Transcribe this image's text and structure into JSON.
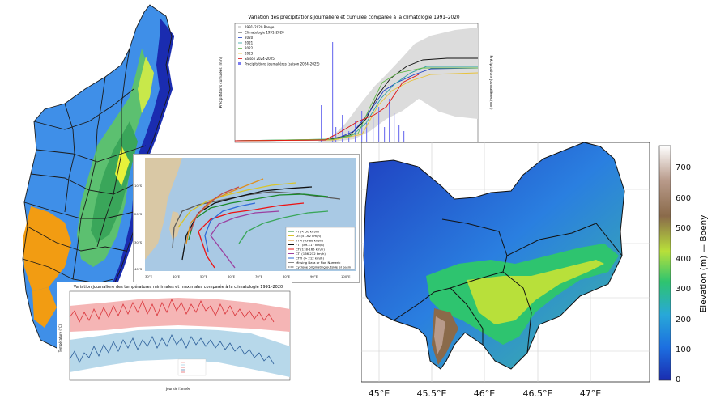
{
  "colors": {
    "precip_cumul": "#111111",
    "precip_range": "#d8d8d8",
    "precip_daily": "#7b7cf0",
    "temp_max_fill": "#f5b5b5",
    "temp_min_fill": "#b7d8ea",
    "temp_max_line": "#d9343a",
    "temp_min_line": "#2d5f9a",
    "colorbar_stops": [
      "#1a2cb0",
      "#1c6fe0",
      "#28a8d8",
      "#2ec46f",
      "#b8e03a",
      "#8a6a4a",
      "#b89a8a",
      "#ffffff"
    ]
  },
  "precip_chart": {
    "title": "Variation des précipitations journalière et cumulée comparée à la climatologie 1991–2020",
    "ylabel_left": "Précipitations cumulées (mm)",
    "ylabel_right": "Précipitations journalières (mm)",
    "legend": [
      "1991–2020 Range",
      "Climatologie 1991–2020",
      "2020",
      "2021",
      "2022",
      "2023",
      "Saison 2024–2025",
      "Précipitations journalières (saison 2024–2025)"
    ]
  },
  "cyclone_map": {
    "legend": [
      "PT (< 50 km/h)",
      "DT (51-62 km/h)",
      "TTM (63-88 km/h)",
      "FTT (89-117 km/h)",
      "CT (118-165 km/h)",
      "CTI (166-212 km/h)",
      "CTTI (> 212 km/h)",
      "Missing Data or Non Numeric",
      "Cyclone originating outside SI basin"
    ],
    "xticks": [
      "30°E",
      "40°E",
      "50°E",
      "60°E",
      "70°E",
      "80°E",
      "90°E",
      "100°E"
    ],
    "yticks": [
      "10°S",
      "20°S",
      "30°S",
      "40°S"
    ]
  },
  "temp_chart": {
    "title": "Variation journalière des températures minimales et maximales comparée à la climatologie 1991–2020",
    "xlabel": "Jour de l'année",
    "ylabel": "Température (°C)"
  },
  "elevation_map": {
    "xticks": [
      "45°E",
      "45.5°E",
      "46°E",
      "46.5°E",
      "47°E"
    ],
    "colorbar_label": "Elevation (m) — Boeny",
    "colorbar_ticks": [
      "700",
      "600",
      "500",
      "400",
      "300",
      "200",
      "100",
      "0"
    ]
  }
}
